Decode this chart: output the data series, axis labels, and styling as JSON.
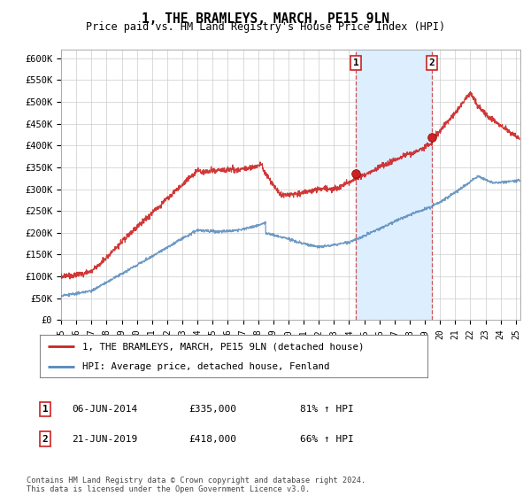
{
  "title": "1, THE BRAMLEYS, MARCH, PE15 9LN",
  "subtitle": "Price paid vs. HM Land Registry's House Price Index (HPI)",
  "ylim": [
    0,
    620000
  ],
  "yticks": [
    0,
    50000,
    100000,
    150000,
    200000,
    250000,
    300000,
    350000,
    400000,
    450000,
    500000,
    550000,
    600000
  ],
  "ytick_labels": [
    "£0",
    "£50K",
    "£100K",
    "£150K",
    "£200K",
    "£250K",
    "£300K",
    "£350K",
    "£400K",
    "£450K",
    "£500K",
    "£550K",
    "£600K"
  ],
  "hpi_color": "#5588bb",
  "price_color": "#cc2222",
  "purchase1_date": 2014.44,
  "purchase1_price": 335000,
  "purchase2_date": 2019.47,
  "purchase2_price": 418000,
  "legend1_text": "1, THE BRAMLEYS, MARCH, PE15 9LN (detached house)",
  "legend2_text": "HPI: Average price, detached house, Fenland",
  "sale1_label": "1",
  "sale1_date_str": "06-JUN-2014",
  "sale1_price_str": "£335,000",
  "sale1_hpi_str": "81% ↑ HPI",
  "sale2_label": "2",
  "sale2_date_str": "21-JUN-2019",
  "sale2_price_str": "£418,000",
  "sale2_hpi_str": "66% ↑ HPI",
  "footnote": "Contains HM Land Registry data © Crown copyright and database right 2024.\nThis data is licensed under the Open Government Licence v3.0.",
  "background_color": "#ffffff",
  "grid_color": "#cccccc",
  "shaded_region_color": "#ddeeff",
  "xlim_start": 1995,
  "xlim_end": 2025.3
}
